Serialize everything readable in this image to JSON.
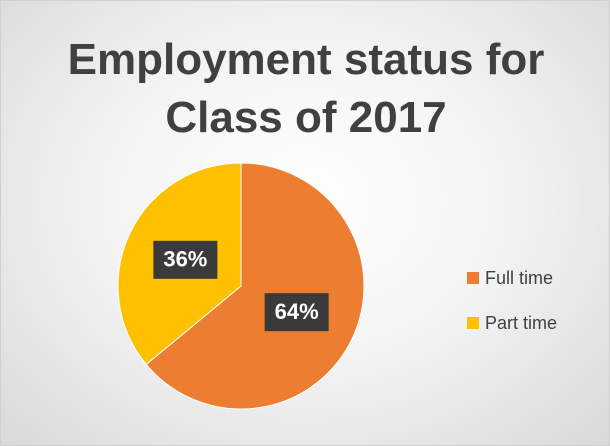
{
  "chart_data": {
    "type": "pie",
    "title": "Employment status for Class of 2017",
    "categories": [
      "Full time",
      "Part time"
    ],
    "values": [
      64,
      36
    ],
    "value_labels": [
      "64%",
      "36%"
    ],
    "colors": [
      "#ED7D31",
      "#FFC000"
    ],
    "legend": "right"
  }
}
